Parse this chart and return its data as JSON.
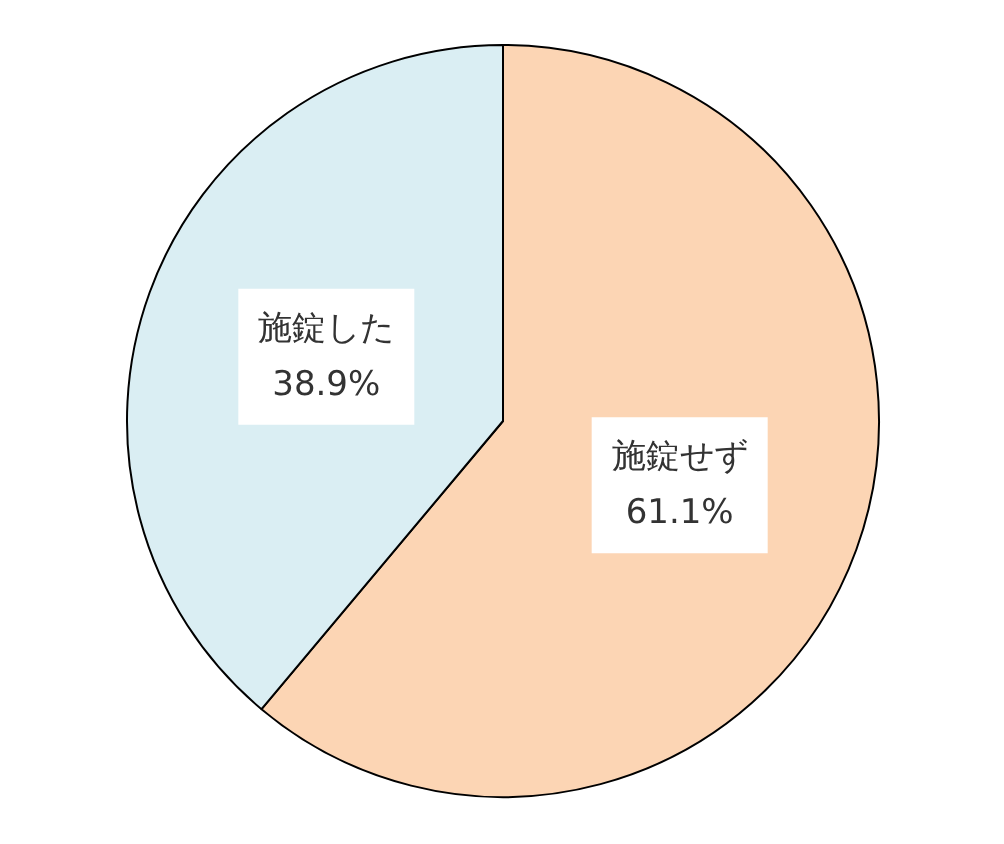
{
  "chart_data": {
    "type": "pie",
    "categories": [
      "施錠せず",
      "施錠した"
    ],
    "values": [
      61.1,
      38.9
    ],
    "colors": [
      "#fcd5b4",
      "#daeef3"
    ],
    "value_labels": [
      "61.1%",
      "38.9%"
    ]
  }
}
